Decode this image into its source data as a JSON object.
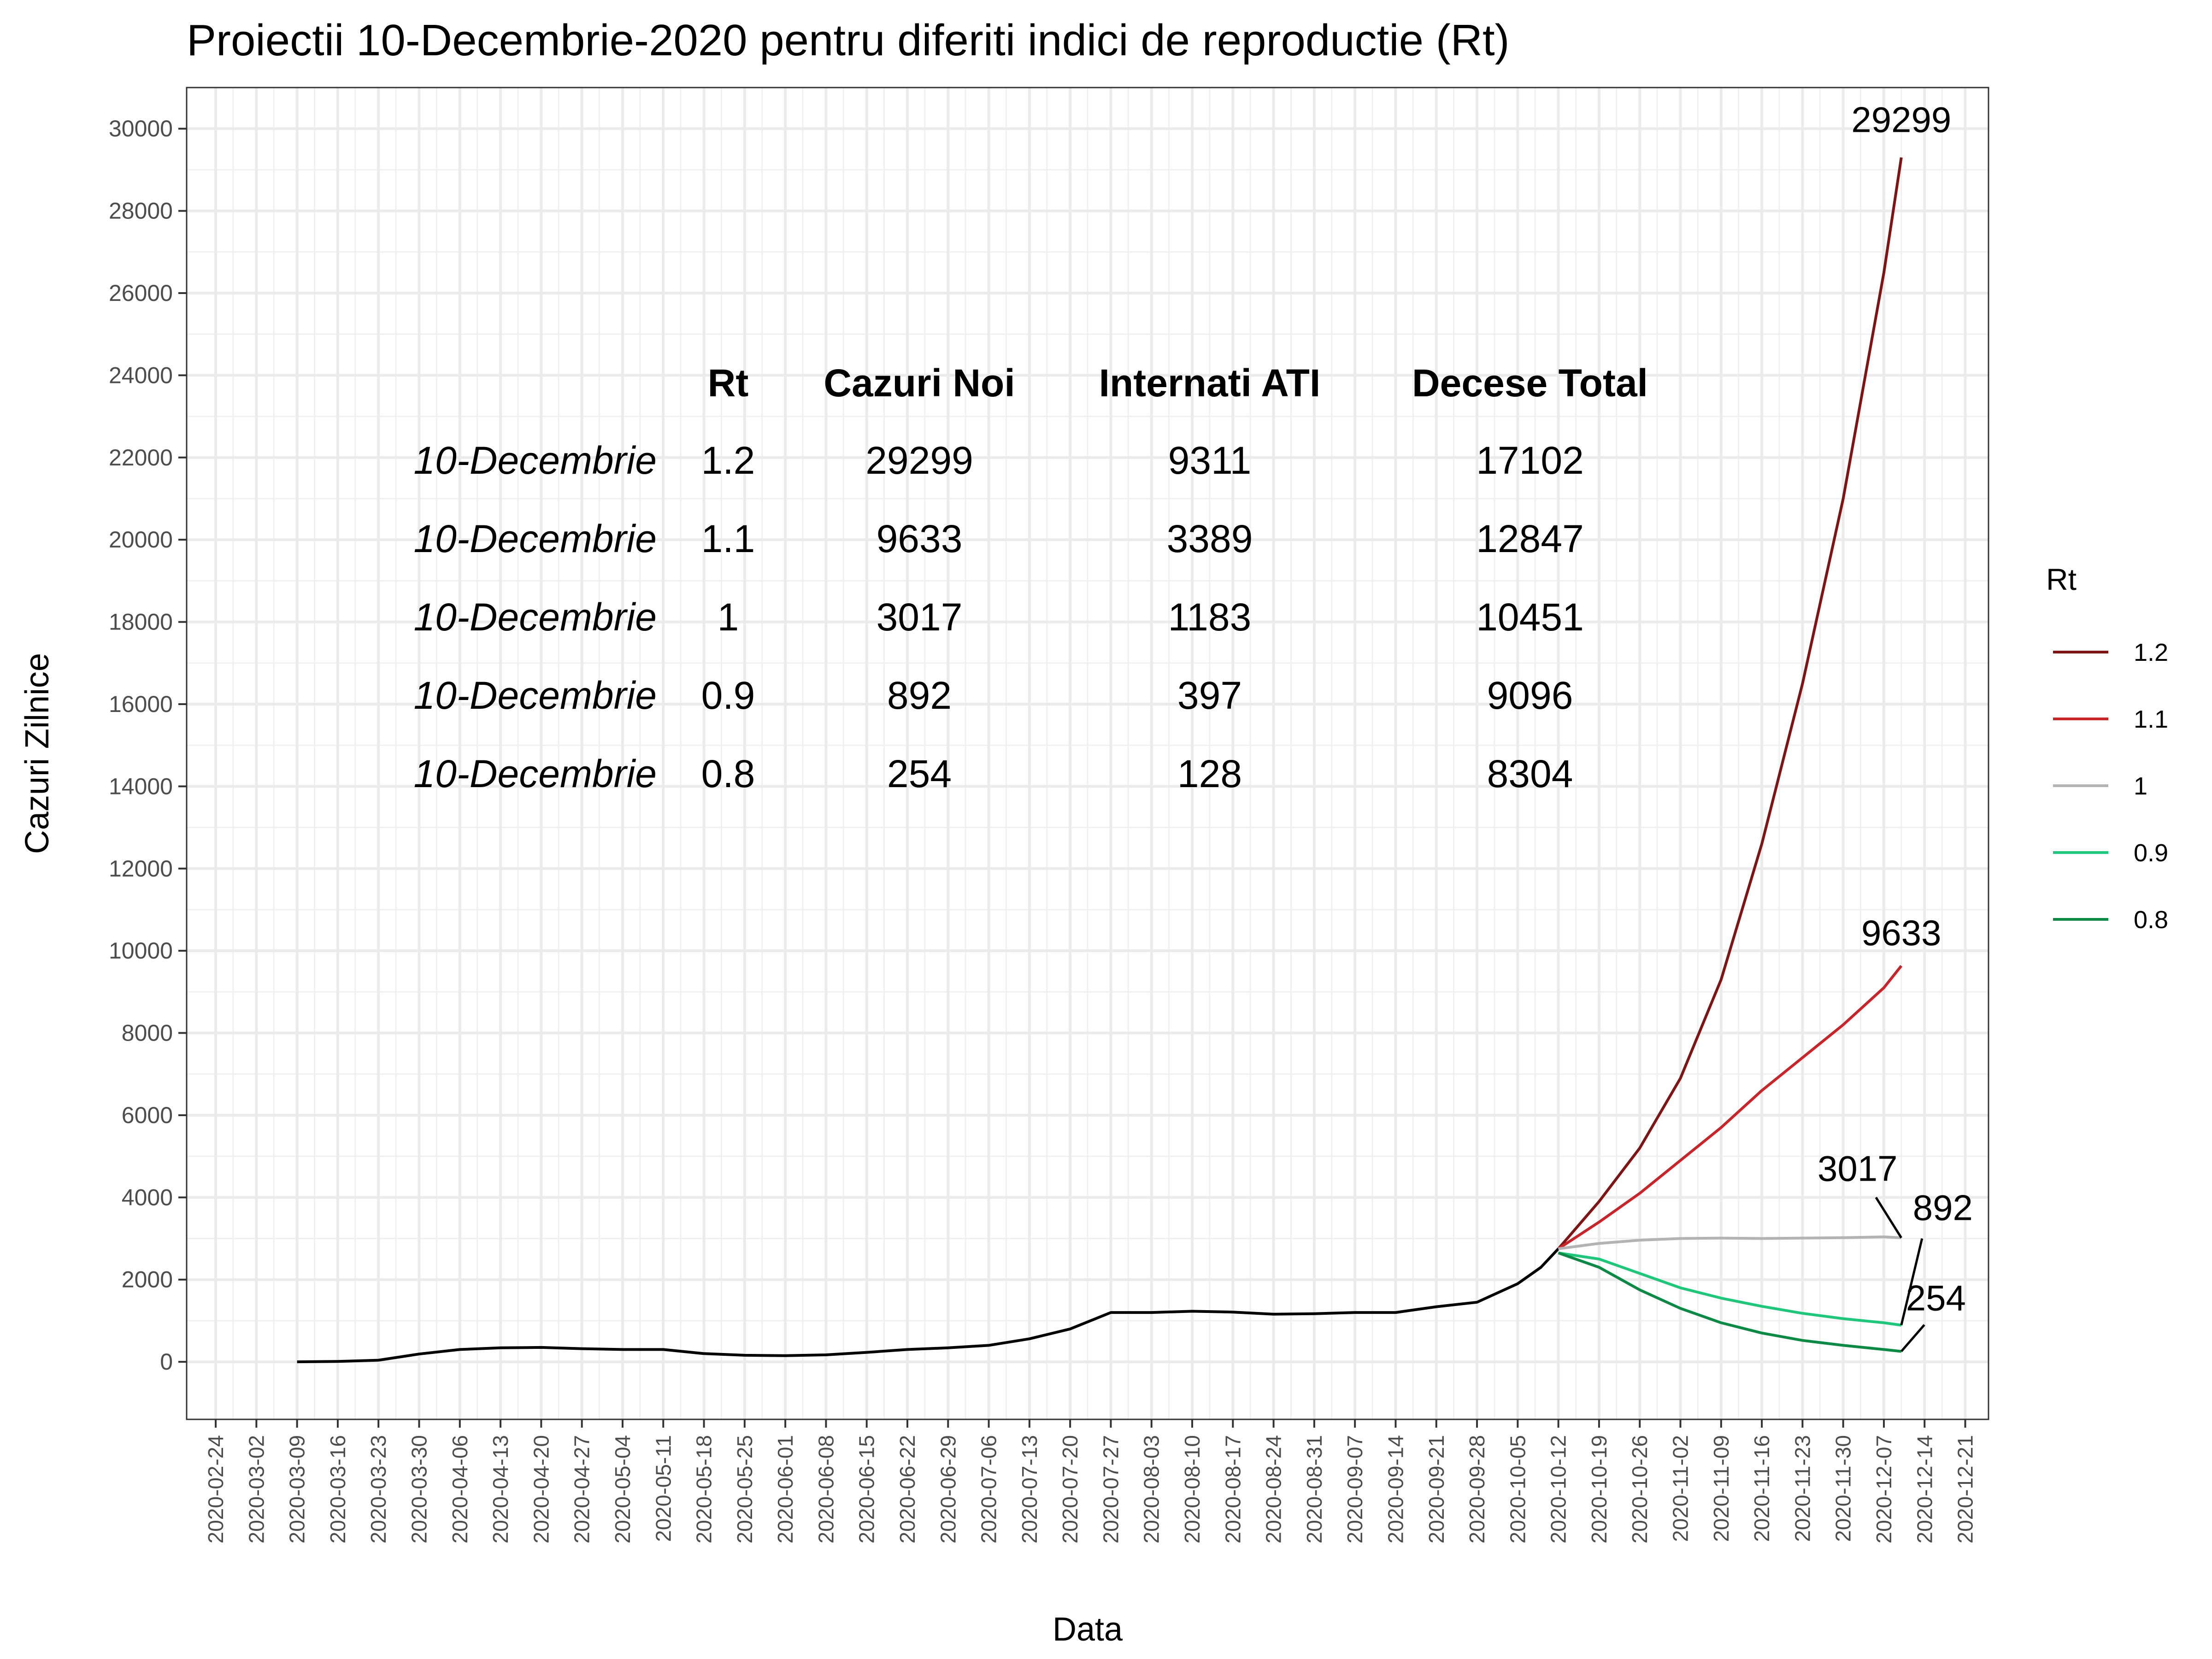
{
  "chart_data": {
    "type": "line",
    "title": "Proiectii 10-Decembrie-2020 pentru diferiti indici de reproductie (Rt)",
    "xlabel": "Data",
    "ylabel": "Cazuri Zilnice",
    "ylim": [
      -1400,
      31000
    ],
    "xlim": [
      "2020-02-19",
      "2020-12-25"
    ],
    "grid": true,
    "y_ticks": [
      0,
      2000,
      4000,
      6000,
      8000,
      10000,
      12000,
      14000,
      16000,
      18000,
      20000,
      22000,
      24000,
      26000,
      28000,
      30000
    ],
    "x_ticks": [
      "2020-02-24",
      "2020-03-02",
      "2020-03-09",
      "2020-03-16",
      "2020-03-23",
      "2020-03-30",
      "2020-04-06",
      "2020-04-13",
      "2020-04-20",
      "2020-04-27",
      "2020-05-04",
      "2020-05-11",
      "2020-05-18",
      "2020-05-25",
      "2020-06-01",
      "2020-06-08",
      "2020-06-15",
      "2020-06-22",
      "2020-06-29",
      "2020-07-06",
      "2020-07-13",
      "2020-07-20",
      "2020-07-27",
      "2020-08-03",
      "2020-08-10",
      "2020-08-17",
      "2020-08-24",
      "2020-08-31",
      "2020-09-07",
      "2020-09-14",
      "2020-09-21",
      "2020-09-28",
      "2020-10-05",
      "2020-10-12",
      "2020-10-19",
      "2020-10-26",
      "2020-11-02",
      "2020-11-09",
      "2020-11-16",
      "2020-11-23",
      "2020-11-30",
      "2020-12-07",
      "2020-12-14",
      "2020-12-21"
    ],
    "observed": {
      "color": "#000000",
      "points": [
        [
          "2020-03-09",
          0
        ],
        [
          "2020-03-16",
          10
        ],
        [
          "2020-03-23",
          40
        ],
        [
          "2020-03-30",
          190
        ],
        [
          "2020-04-06",
          300
        ],
        [
          "2020-04-13",
          340
        ],
        [
          "2020-04-20",
          350
        ],
        [
          "2020-04-27",
          320
        ],
        [
          "2020-05-04",
          300
        ],
        [
          "2020-05-11",
          300
        ],
        [
          "2020-05-18",
          200
        ],
        [
          "2020-05-25",
          160
        ],
        [
          "2020-06-01",
          150
        ],
        [
          "2020-06-08",
          170
        ],
        [
          "2020-06-15",
          230
        ],
        [
          "2020-06-22",
          300
        ],
        [
          "2020-06-29",
          340
        ],
        [
          "2020-07-06",
          400
        ],
        [
          "2020-07-13",
          560
        ],
        [
          "2020-07-20",
          800
        ],
        [
          "2020-07-27",
          1200
        ],
        [
          "2020-08-03",
          1200
        ],
        [
          "2020-08-10",
          1230
        ],
        [
          "2020-08-17",
          1210
        ],
        [
          "2020-08-24",
          1160
        ],
        [
          "2020-08-31",
          1170
        ],
        [
          "2020-09-07",
          1200
        ],
        [
          "2020-09-14",
          1200
        ],
        [
          "2020-09-21",
          1340
        ],
        [
          "2020-09-28",
          1450
        ],
        [
          "2020-10-05",
          1900
        ],
        [
          "2020-10-09",
          2300
        ],
        [
          "2020-10-12",
          2750
        ]
      ]
    },
    "projection_x": [
      "2020-10-12",
      "2020-10-19",
      "2020-10-26",
      "2020-11-02",
      "2020-11-09",
      "2020-11-16",
      "2020-11-23",
      "2020-11-30",
      "2020-12-07",
      "2020-12-10"
    ],
    "series": [
      {
        "name": "1.2",
        "color": "#7f1414",
        "label": "29299",
        "values": [
          2750,
          3900,
          5200,
          6900,
          9300,
          12600,
          16500,
          21000,
          26500,
          29299
        ]
      },
      {
        "name": "1.1",
        "color": "#c8252b",
        "label": "9633",
        "values": [
          2750,
          3400,
          4100,
          4900,
          5700,
          6600,
          7400,
          8200,
          9100,
          9633
        ]
      },
      {
        "name": "1",
        "color": "#b3b3b3",
        "label": "3017",
        "values": [
          2750,
          2880,
          2960,
          3000,
          3010,
          3000,
          3010,
          3020,
          3040,
          3017
        ]
      },
      {
        "name": "0.9",
        "color": "#20c77a",
        "label": "892",
        "values": [
          2650,
          2500,
          2150,
          1800,
          1550,
          1350,
          1180,
          1050,
          950,
          892
        ]
      },
      {
        "name": "0.8",
        "color": "#0c8a45",
        "label": "254",
        "values": [
          2650,
          2300,
          1750,
          1300,
          950,
          700,
          520,
          400,
          300,
          254
        ]
      }
    ],
    "legend": {
      "title": "Rt",
      "placement": "right"
    },
    "annotation_table": {
      "headers": [
        "Rt",
        "Cazuri Noi",
        "Internati ATI",
        "Decese Total"
      ],
      "rows": [
        {
          "date": "10-Decembrie",
          "rt": "1.2",
          "cazuri": "29299",
          "ati": "9311",
          "decese": "17102"
        },
        {
          "date": "10-Decembrie",
          "rt": "1.1",
          "cazuri": "9633",
          "ati": "3389",
          "decese": "12847"
        },
        {
          "date": "10-Decembrie",
          "rt": "1",
          "cazuri": "3017",
          "ati": "1183",
          "decese": "10451"
        },
        {
          "date": "10-Decembrie",
          "rt": "0.9",
          "cazuri": "892",
          "ati": "397",
          "decese": "9096"
        },
        {
          "date": "10-Decembrie",
          "rt": "0.8",
          "cazuri": "254",
          "ati": "128",
          "decese": "8304"
        }
      ]
    }
  }
}
